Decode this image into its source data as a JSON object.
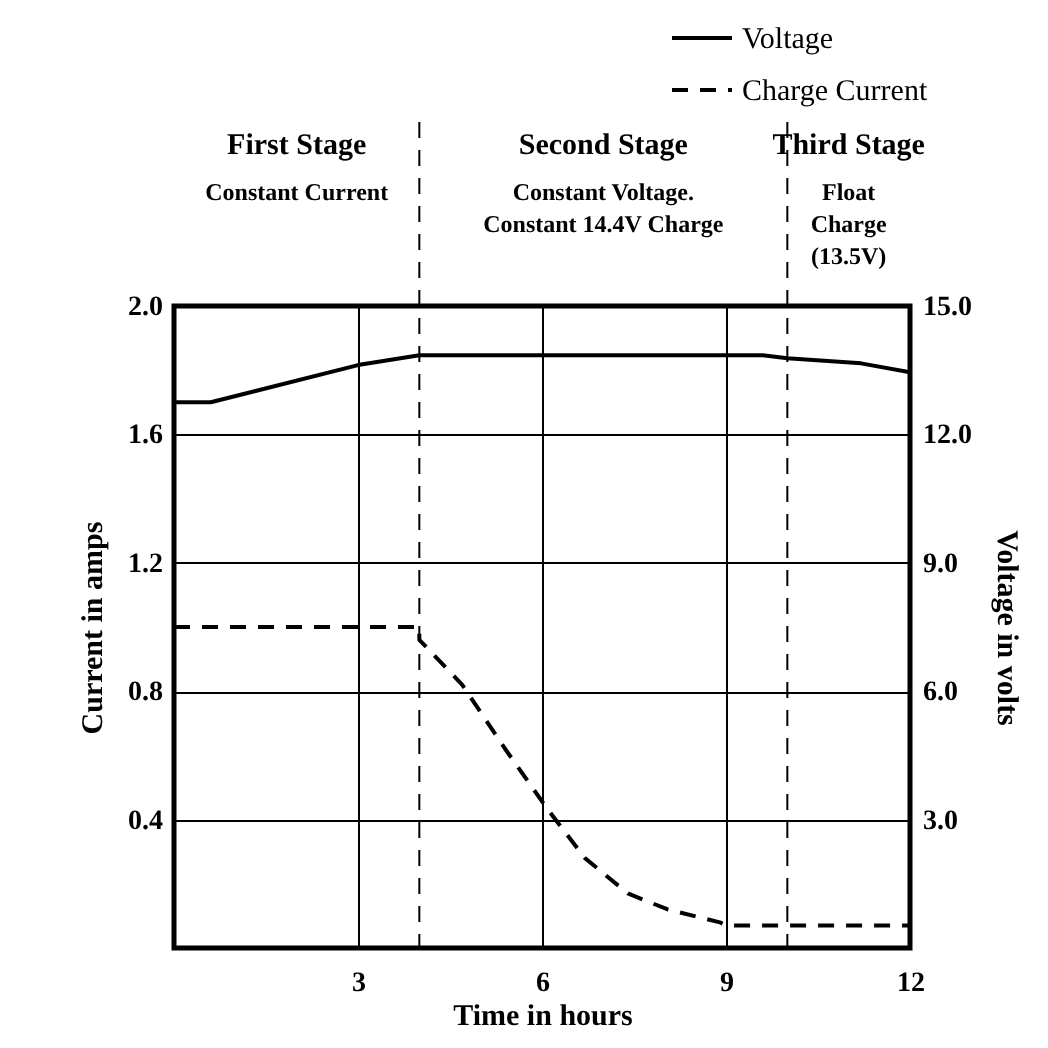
{
  "chart_data": {
    "type": "line",
    "xlabel": "Time in hours",
    "ylabel": "Current in amps",
    "y2label": "Voltage in volts",
    "xlim": [
      0,
      12
    ],
    "xticks": [
      3,
      6,
      9,
      12
    ],
    "ylim": [
      0,
      2.0
    ],
    "yticks": [
      0.4,
      0.8,
      1.2,
      1.6,
      {
        "value": 2.0,
        "label": "2.0"
      }
    ],
    "y2lim": [
      0,
      15
    ],
    "y2ticks": [
      {
        "value": 3,
        "label": "3.0"
      },
      {
        "value": 6,
        "label": "6.0"
      },
      {
        "value": 9,
        "label": "9.0"
      },
      {
        "value": 12,
        "label": "12.0"
      },
      {
        "value": 15,
        "label": "15.0"
      }
    ],
    "grid": true,
    "legend": "top right",
    "marker": "none",
    "series": [
      {
        "name": "Voltage",
        "color": "#000000",
        "axis": "y2",
        "line_style": "solid",
        "x": [
          0,
          0.6,
          3.0,
          4.0,
          9.6,
          10.0,
          11.2,
          12.0
        ],
        "values": [
          12.75,
          12.75,
          13.62,
          13.85,
          13.85,
          13.78,
          13.66,
          13.45
        ]
      },
      {
        "name": "Charge Current",
        "color": "#000000",
        "axis": "y",
        "line_style": "dashed",
        "x": [
          0,
          4.0,
          4.0,
          4.7,
          5.4,
          6.1,
          6.7,
          7.4,
          8.05,
          8.9,
          9.0,
          12.0
        ],
        "values": [
          1.0,
          1.0,
          0.96,
          0.82,
          0.62,
          0.43,
          0.28,
          0.17,
          0.12,
          0.08,
          0.07,
          0.07
        ]
      }
    ],
    "ref_lines": [
      {
        "axis": "x",
        "value": 4.0,
        "line_style": "dashed",
        "color": "#000000"
      },
      {
        "axis": "x",
        "value": 10.0,
        "line_style": "dashed",
        "color": "#000000"
      }
    ],
    "annotations": [
      "First Stage",
      "Constant Current",
      "Second Stage",
      "Constant Voltage.\nConstant 14.4V Charge",
      "Third Stage",
      "Float\nCharge\n(13.5V)"
    ]
  }
}
